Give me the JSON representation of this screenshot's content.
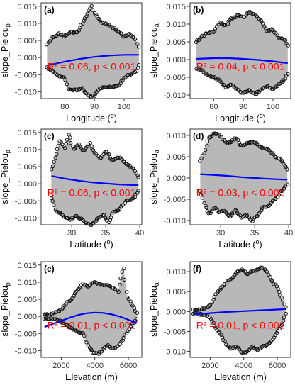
{
  "chart_data": [
    {
      "panel": "(a)",
      "type": "scatter",
      "xlabel": "Longitude (°)",
      "ylabel": "slope_Pielou",
      "ylabel_sub": "p",
      "xlim": [
        72,
        106
      ],
      "ylim": [
        -0.012,
        0.016
      ],
      "xticks": [
        "80",
        "90",
        "100"
      ],
      "yticks": [
        "-0.010",
        "-0.005",
        "0.000",
        "0.005",
        "0.010",
        "0.015"
      ],
      "annotation": "R² = 0.06, p < 0.001",
      "upper": [
        [
          74,
          0.004
        ],
        [
          76,
          0.006
        ],
        [
          78,
          0.007
        ],
        [
          80,
          0.0062
        ],
        [
          82,
          0.0075
        ],
        [
          84,
          0.0072
        ],
        [
          86,
          0.01
        ],
        [
          88,
          0.0135
        ],
        [
          89,
          0.015
        ],
        [
          90,
          0.013
        ],
        [
          92,
          0.0105
        ],
        [
          94,
          0.0098
        ],
        [
          96,
          0.0088
        ],
        [
          98,
          0.0078
        ],
        [
          100,
          0.006
        ],
        [
          102,
          0.0068
        ],
        [
          104,
          0.0052
        ],
        [
          105,
          0.003
        ]
      ],
      "lower": [
        [
          74,
          -0.003
        ],
        [
          76,
          -0.004
        ],
        [
          78,
          -0.0055
        ],
        [
          80,
          -0.006
        ],
        [
          81,
          -0.009
        ],
        [
          82,
          -0.0095
        ],
        [
          84,
          -0.0095
        ],
        [
          86,
          -0.009
        ],
        [
          88,
          -0.011
        ],
        [
          89,
          -0.0115
        ],
        [
          90,
          -0.011
        ],
        [
          92,
          -0.0088
        ],
        [
          94,
          -0.0088
        ],
        [
          96,
          -0.0085
        ],
        [
          98,
          -0.0085
        ],
        [
          100,
          -0.006
        ],
        [
          102,
          -0.005
        ],
        [
          104,
          -0.004
        ],
        [
          105,
          -0.002
        ]
      ],
      "fit": [
        [
          74,
          -0.0023
        ],
        [
          80,
          -0.0012
        ],
        [
          85,
          -0.0004
        ],
        [
          90,
          0.0002
        ],
        [
          95,
          0.0006
        ],
        [
          100,
          0.0008
        ],
        [
          105,
          0.0008
        ]
      ]
    },
    {
      "panel": "(b)",
      "type": "scatter",
      "xlabel": "Longitude (°)",
      "ylabel": "slope_Pielou",
      "ylabel_sub": "a",
      "xlim": [
        72,
        106
      ],
      "ylim": [
        -0.011,
        0.016
      ],
      "xticks": [
        "80",
        "90",
        "100"
      ],
      "yticks": [
        "-0.010",
        "-0.005",
        "0.000",
        "0.005",
        "0.010",
        "0.015"
      ],
      "annotation": "R² = 0.04, p < 0.001",
      "upper": [
        [
          74,
          0.005
        ],
        [
          76,
          0.0065
        ],
        [
          78,
          0.0075
        ],
        [
          80,
          0.0078
        ],
        [
          82,
          0.0105
        ],
        [
          84,
          0.0095
        ],
        [
          86,
          0.0115
        ],
        [
          88,
          0.0125
        ],
        [
          90,
          0.0118
        ],
        [
          92,
          0.0135
        ],
        [
          94,
          0.0125
        ],
        [
          96,
          0.011
        ],
        [
          98,
          0.008
        ],
        [
          100,
          0.0085
        ],
        [
          102,
          0.0062
        ],
        [
          104,
          0.0055
        ],
        [
          105,
          0.004
        ]
      ],
      "lower": [
        [
          74,
          -0.0025
        ],
        [
          76,
          -0.003
        ],
        [
          78,
          -0.0045
        ],
        [
          80,
          -0.005
        ],
        [
          82,
          -0.006
        ],
        [
          84,
          -0.008
        ],
        [
          86,
          -0.007
        ],
        [
          88,
          -0.0085
        ],
        [
          90,
          -0.0095
        ],
        [
          92,
          -0.0085
        ],
        [
          94,
          -0.0098
        ],
        [
          96,
          -0.0085
        ],
        [
          98,
          -0.0075
        ],
        [
          100,
          -0.0085
        ],
        [
          102,
          -0.007
        ],
        [
          104,
          -0.0055
        ],
        [
          105,
          -0.004
        ]
      ],
      "fit": [
        [
          74,
          0.0002
        ],
        [
          80,
          0.0004
        ],
        [
          85,
          0.0004
        ],
        [
          90,
          0.0002
        ],
        [
          95,
          -0.0001
        ],
        [
          100,
          -0.0005
        ],
        [
          105,
          -0.001
        ]
      ]
    },
    {
      "panel": "(c)",
      "type": "scatter",
      "xlabel": "Latitude (°)",
      "ylabel": "slope_Pielou",
      "ylabel_sub": "p",
      "xlim": [
        25.5,
        40.3
      ],
      "ylim": [
        -0.012,
        0.016
      ],
      "xticks": [
        "30",
        "35",
        "40"
      ],
      "yticks": [
        "-0.010",
        "-0.005",
        "0.000",
        "0.005",
        "0.010",
        "0.015"
      ],
      "annotation": "R² = 0.06, p < 0.001",
      "upper": [
        [
          27,
          0.004
        ],
        [
          27.6,
          0.008
        ],
        [
          28.3,
          0.0125
        ],
        [
          29,
          0.0105
        ],
        [
          29.6,
          0.0145
        ],
        [
          30.2,
          0.01
        ],
        [
          31,
          0.0115
        ],
        [
          31.8,
          0.0095
        ],
        [
          32.6,
          0.012
        ],
        [
          33.4,
          0.009
        ],
        [
          34.2,
          0.0075
        ],
        [
          35,
          0.0095
        ],
        [
          36,
          0.0068
        ],
        [
          37,
          0.0078
        ],
        [
          38,
          0.0058
        ],
        [
          39,
          0.0045
        ],
        [
          39.8,
          0.002
        ]
      ],
      "lower": [
        [
          27,
          -0.004
        ],
        [
          27.6,
          -0.008
        ],
        [
          28.3,
          -0.0085
        ],
        [
          29,
          -0.0098
        ],
        [
          29.8,
          -0.0105
        ],
        [
          30.6,
          -0.0095
        ],
        [
          31.4,
          -0.0102
        ],
        [
          32.2,
          -0.0118
        ],
        [
          33,
          -0.012
        ],
        [
          33.8,
          -0.0102
        ],
        [
          34.6,
          -0.009
        ],
        [
          35.4,
          -0.0112
        ],
        [
          36.2,
          -0.0082
        ],
        [
          37,
          -0.0075
        ],
        [
          38,
          -0.005
        ],
        [
          39,
          -0.0045
        ],
        [
          39.8,
          -0.002
        ]
      ],
      "fit": [
        [
          27,
          0.0023
        ],
        [
          29,
          0.0015
        ],
        [
          31,
          0.0009
        ],
        [
          33,
          0.0004
        ],
        [
          35,
          0.0001
        ],
        [
          37,
          -0.0002
        ],
        [
          39.8,
          -0.0004
        ]
      ]
    },
    {
      "panel": "(d)",
      "type": "scatter",
      "xlabel": "Latitude (°)",
      "ylabel": "slope_Pielou",
      "ylabel_sub": "a",
      "xlim": [
        25.5,
        40.3
      ],
      "ylim": [
        -0.011,
        0.0115
      ],
      "xticks": [
        "30",
        "35",
        "40"
      ],
      "yticks": [
        "-0.010",
        "-0.005",
        "0.000",
        "0.005",
        "0.010"
      ],
      "annotation": "R² = 0.03, p < 0.001",
      "upper": [
        [
          27,
          0.004
        ],
        [
          27.6,
          0.006
        ],
        [
          28.3,
          0.0095
        ],
        [
          29,
          0.0105
        ],
        [
          29.8,
          0.0102
        ],
        [
          30.6,
          0.0085
        ],
        [
          31.4,
          0.0082
        ],
        [
          32.2,
          0.0095
        ],
        [
          33,
          0.0075
        ],
        [
          34,
          0.0082
        ],
        [
          35,
          0.0085
        ],
        [
          36,
          0.0072
        ],
        [
          37,
          0.0068
        ],
        [
          38,
          0.005
        ],
        [
          39,
          0.004
        ],
        [
          39.8,
          0.002
        ]
      ],
      "lower": [
        [
          27,
          -0.003
        ],
        [
          27.6,
          -0.006
        ],
        [
          28.3,
          -0.0085
        ],
        [
          29,
          -0.007
        ],
        [
          29.8,
          -0.008
        ],
        [
          30.6,
          -0.0078
        ],
        [
          31.4,
          -0.0092
        ],
        [
          32.2,
          -0.0075
        ],
        [
          33,
          -0.0092
        ],
        [
          33.8,
          -0.0085
        ],
        [
          34.6,
          -0.0102
        ],
        [
          35.4,
          -0.0088
        ],
        [
          36.2,
          -0.007
        ],
        [
          37,
          -0.0065
        ],
        [
          38,
          -0.005
        ],
        [
          39,
          -0.003
        ],
        [
          39.8,
          -0.0015
        ]
      ],
      "fit": [
        [
          27,
          0.0009
        ],
        [
          29,
          0.0007
        ],
        [
          31,
          0.0005
        ],
        [
          33,
          0.0002
        ],
        [
          35,
          0
        ],
        [
          37,
          -0.0002
        ],
        [
          39.8,
          -0.0004
        ]
      ]
    },
    {
      "panel": "(e)",
      "type": "scatter",
      "xlabel": "Elevation (m)",
      "ylabel": "slope_Pielou",
      "ylabel_sub": "p",
      "xlim": [
        800,
        6800
      ],
      "ylim": [
        -0.012,
        0.016
      ],
      "xticks": [
        "2000",
        "4000",
        "6000"
      ],
      "yticks": [
        "-0.010",
        "-0.005",
        "0.000",
        "0.005",
        "0.010",
        "0.015"
      ],
      "annotation": "R² = 0.01, p < 0.001",
      "upper": [
        [
          1000,
          0.0005
        ],
        [
          1500,
          0.0008
        ],
        [
          1800,
          0.0015
        ],
        [
          2000,
          0.002
        ],
        [
          2300,
          0.004
        ],
        [
          2600,
          0.005
        ],
        [
          3000,
          0.008
        ],
        [
          3300,
          0.0095
        ],
        [
          3600,
          0.0085
        ],
        [
          3900,
          0.01
        ],
        [
          4200,
          0.0095
        ],
        [
          4500,
          0.0092
        ],
        [
          4800,
          0.0092
        ],
        [
          5100,
          0.0082
        ],
        [
          5400,
          0.0072
        ],
        [
          5700,
          0.0148
        ],
        [
          5900,
          0.006
        ],
        [
          6200,
          0.0035
        ],
        [
          6500,
          0.001
        ]
      ],
      "lower": [
        [
          1000,
          -0.0005
        ],
        [
          1500,
          -0.0008
        ],
        [
          1800,
          -0.001
        ],
        [
          2000,
          -0.0015
        ],
        [
          2300,
          -0.0025
        ],
        [
          2600,
          -0.0035
        ],
        [
          3000,
          -0.0045
        ],
        [
          3300,
          -0.005
        ],
        [
          3600,
          -0.0085
        ],
        [
          3900,
          -0.0105
        ],
        [
          4200,
          -0.011
        ],
        [
          4500,
          -0.0095
        ],
        [
          4800,
          -0.0085
        ],
        [
          5100,
          -0.0095
        ],
        [
          5400,
          -0.0085
        ],
        [
          5700,
          -0.0065
        ],
        [
          5900,
          -0.0045
        ],
        [
          6200,
          -0.0025
        ],
        [
          6500,
          -0.001
        ]
      ],
      "fit": [
        [
          1000,
          -0.0031
        ],
        [
          1500,
          -0.0022
        ],
        [
          2000,
          -0.0013
        ],
        [
          2500,
          -0.0004
        ],
        [
          3000,
          0.0004
        ],
        [
          3500,
          0.0009
        ],
        [
          4000,
          0.0011
        ],
        [
          4500,
          0.001
        ],
        [
          5000,
          0.0006
        ],
        [
          5500,
          -0.0001
        ],
        [
          6000,
          -0.001
        ],
        [
          6500,
          -0.0019
        ]
      ]
    },
    {
      "panel": "(f)",
      "type": "scatter",
      "xlabel": "Elevation (m)",
      "ylabel": "slope_Pielou",
      "ylabel_sub": "a",
      "xlim": [
        800,
        6800
      ],
      "ylim": [
        -0.0115,
        0.0125
      ],
      "xticks": [
        "2000",
        "4000",
        "6000"
      ],
      "yticks": [
        "-0.010",
        "-0.005",
        "0.000",
        "0.005",
        "0.010"
      ],
      "annotation": "R² = 0.01, p < 0.001",
      "upper": [
        [
          1000,
          0.0004
        ],
        [
          1500,
          0.0006
        ],
        [
          1800,
          0.001
        ],
        [
          2000,
          0.0015
        ],
        [
          2300,
          0.004
        ],
        [
          2600,
          0.0055
        ],
        [
          3000,
          0.0075
        ],
        [
          3300,
          0.0085
        ],
        [
          3600,
          0.01
        ],
        [
          3900,
          0.0105
        ],
        [
          4200,
          0.0095
        ],
        [
          4500,
          0.01
        ],
        [
          4800,
          0.0105
        ],
        [
          5100,
          0.0112
        ],
        [
          5400,
          0.01
        ],
        [
          5700,
          0.0075
        ],
        [
          6000,
          0.006
        ],
        [
          6300,
          0.003
        ],
        [
          6500,
          0.001
        ]
      ],
      "lower": [
        [
          1000,
          -0.0005
        ],
        [
          1500,
          -0.0007
        ],
        [
          1800,
          -0.001
        ],
        [
          2000,
          -0.0015
        ],
        [
          2300,
          -0.004
        ],
        [
          2600,
          -0.0055
        ],
        [
          3000,
          -0.0085
        ],
        [
          3300,
          -0.0092
        ],
        [
          3600,
          -0.0088
        ],
        [
          3900,
          -0.0105
        ],
        [
          4200,
          -0.0102
        ],
        [
          4500,
          -0.0085
        ],
        [
          4800,
          -0.0098
        ],
        [
          5100,
          -0.0088
        ],
        [
          5400,
          -0.0085
        ],
        [
          5700,
          -0.007
        ],
        [
          6000,
          -0.005
        ],
        [
          6300,
          -0.003
        ],
        [
          6500,
          -0.0005
        ]
      ],
      "fit": [
        [
          1000,
          -0.0007
        ],
        [
          2000,
          -0.0004
        ],
        [
          3000,
          -0.0001
        ],
        [
          4000,
          0.0001
        ],
        [
          5000,
          0.0003
        ],
        [
          6000,
          0.0005
        ],
        [
          6500,
          0.0006
        ]
      ]
    }
  ],
  "colors": {
    "fill": "#b8b8b8",
    "points": "#111111",
    "fit": "#0000ff",
    "annotation": "#ff0000",
    "axis": "#333333"
  }
}
